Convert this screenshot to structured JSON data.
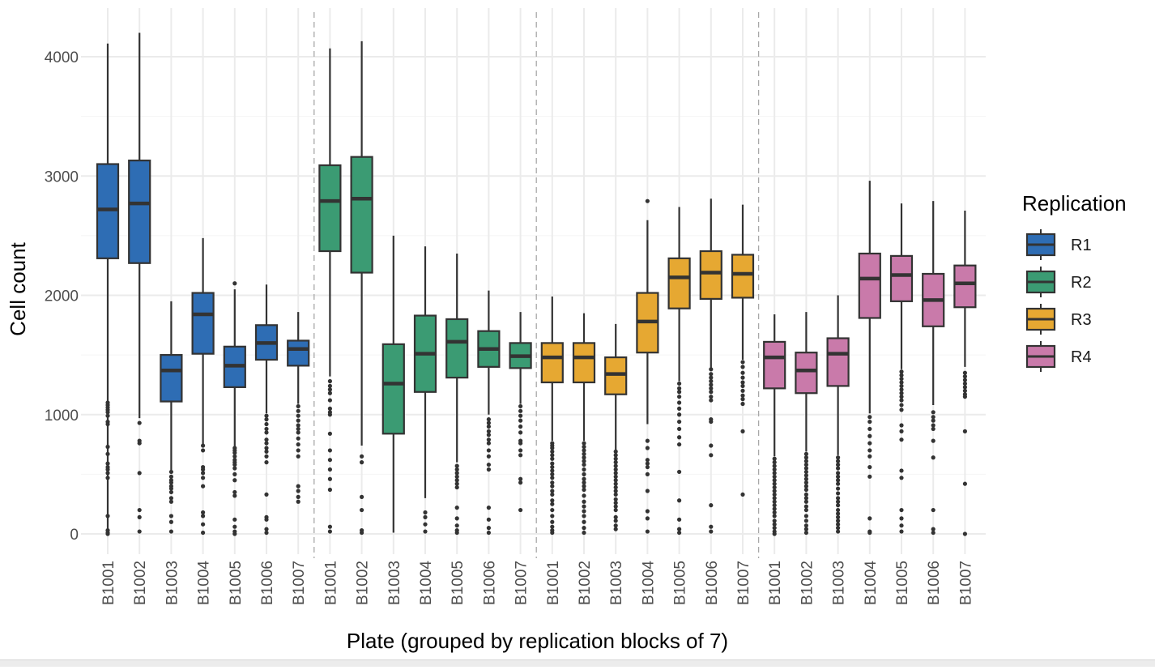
{
  "chart_data": {
    "type": "box",
    "xlabel": "Plate (grouped by replication blocks of 7)",
    "ylabel": "Cell count",
    "ylim": [
      -170,
      4400
    ],
    "yticks": [
      0,
      1000,
      2000,
      3000,
      4000
    ],
    "grid": true,
    "legend": {
      "title": "Replication",
      "position": "right"
    },
    "series": [
      {
        "name": "R1",
        "color": "#2E6DB4",
        "boxes": [
          {
            "plate": "B1001",
            "lower": 10,
            "q1": 2310,
            "median": 2720,
            "q3": 3100,
            "upper": 4110,
            "outliers": [
              1100,
              1080,
              1060,
              1040,
              1020,
              990,
              940,
              920,
              730,
              670,
              590,
              560,
              540,
              510,
              470,
              150,
              30,
              10,
              0
            ]
          },
          {
            "plate": "B1002",
            "lower": 970,
            "q1": 2270,
            "median": 2770,
            "q3": 3130,
            "upper": 4200,
            "outliers": [
              930,
              780,
              760,
              510,
              200,
              140,
              20
            ]
          },
          {
            "plate": "B1003",
            "lower": 520,
            "q1": 1110,
            "median": 1370,
            "q3": 1500,
            "upper": 1950,
            "outliers": [
              520,
              480,
              450,
              430,
              400,
              380,
              350,
              300,
              270,
              150,
              100,
              20
            ]
          },
          {
            "plate": "B1004",
            "lower": 750,
            "q1": 1510,
            "median": 1840,
            "q3": 2020,
            "upper": 2480,
            "outliers": [
              740,
              700,
              560,
              540,
              510,
              470,
              400,
              180,
              150,
              80,
              10
            ]
          },
          {
            "plate": "B1005",
            "lower": 720,
            "q1": 1230,
            "median": 1410,
            "q3": 1570,
            "upper": 2050,
            "outliers": [
              2100,
              720,
              700,
              680,
              650,
              620,
              600,
              580,
              550,
              500,
              450,
              350,
              320,
              120,
              60,
              20,
              0
            ]
          },
          {
            "plate": "B1006",
            "lower": 1010,
            "q1": 1460,
            "median": 1600,
            "q3": 1750,
            "upper": 2090,
            "outliers": [
              990,
              960,
              920,
              880,
              850,
              790,
              760,
              720,
              690,
              650,
              600,
              330,
              140,
              120,
              40,
              10
            ]
          },
          {
            "plate": "B1007",
            "lower": 1090,
            "q1": 1410,
            "median": 1550,
            "q3": 1620,
            "upper": 1860,
            "outliers": [
              1070,
              1030,
              990,
              950,
              910,
              880,
              850,
              800,
              750,
              700,
              650,
              400,
              360,
              310,
              270
            ]
          }
        ]
      },
      {
        "name": "R2",
        "color": "#3B9B73",
        "boxes": [
          {
            "plate": "B1001",
            "lower": 1320,
            "q1": 2370,
            "median": 2790,
            "q3": 3090,
            "upper": 4070,
            "outliers": [
              1280,
              1240,
              1210,
              1180,
              1120,
              1050,
              1020,
              1000,
              840,
              700,
              620,
              540,
              460,
              370,
              60,
              20
            ]
          },
          {
            "plate": "B1002",
            "lower": 740,
            "q1": 2190,
            "median": 2810,
            "q3": 3160,
            "upper": 4130,
            "outliers": [
              650,
              600,
              310,
              200,
              30,
              10
            ]
          },
          {
            "plate": "B1003",
            "lower": 10,
            "q1": 840,
            "median": 1260,
            "q3": 1590,
            "upper": 2500,
            "outliers": []
          },
          {
            "plate": "B1004",
            "lower": 300,
            "q1": 1190,
            "median": 1510,
            "q3": 1830,
            "upper": 2410,
            "outliers": [
              180,
              140,
              80,
              20
            ]
          },
          {
            "plate": "B1005",
            "lower": 600,
            "q1": 1310,
            "median": 1610,
            "q3": 1800,
            "upper": 2350,
            "outliers": [
              570,
              540,
              510,
              480,
              450,
              420,
              390,
              220,
              130,
              70,
              30,
              10
            ]
          },
          {
            "plate": "B1006",
            "lower": 1000,
            "q1": 1400,
            "median": 1550,
            "q3": 1700,
            "upper": 2040,
            "outliers": [
              960,
              930,
              900,
              860,
              830,
              790,
              760,
              700,
              650,
              580,
              540,
              220,
              120,
              50,
              10
            ]
          },
          {
            "plate": "B1007",
            "lower": 1090,
            "q1": 1390,
            "median": 1490,
            "q3": 1600,
            "upper": 1860,
            "outliers": [
              1070,
              1030,
              990,
              950,
              900,
              850,
              780,
              760,
              700,
              660,
              460,
              430,
              200
            ]
          }
        ]
      },
      {
        "name": "R3",
        "color": "#E6A832",
        "boxes": [
          {
            "plate": "B1001",
            "lower": 780,
            "q1": 1270,
            "median": 1480,
            "q3": 1600,
            "upper": 1990,
            "outliers": [
              760,
              740,
              720,
              690,
              660,
              630,
              590,
              560,
              530,
              500,
              470,
              430,
              400,
              360,
              330,
              280,
              250,
              200,
              150,
              100,
              60,
              30,
              10
            ]
          },
          {
            "plate": "B1002",
            "lower": 780,
            "q1": 1270,
            "median": 1480,
            "q3": 1600,
            "upper": 1850,
            "outliers": [
              760,
              730,
              700,
              670,
              640,
              610,
              580,
              540,
              500,
              460,
              430,
              400,
              370,
              320,
              270,
              230,
              190,
              150,
              100,
              50,
              10
            ]
          },
          {
            "plate": "B1003",
            "lower": 700,
            "q1": 1170,
            "median": 1340,
            "q3": 1480,
            "upper": 1760,
            "outliers": [
              690,
              660,
              630,
              600,
              570,
              540,
              510,
              480,
              450,
              420,
              390,
              360,
              330,
              290,
              260,
              230,
              200,
              140,
              110,
              70,
              40
            ]
          },
          {
            "plate": "B1004",
            "lower": 920,
            "q1": 1520,
            "median": 1780,
            "q3": 2020,
            "upper": 2630,
            "outliers": [
              2790,
              780,
              720,
              620,
              590,
              560,
              500,
              360,
              190,
              130,
              20
            ]
          },
          {
            "plate": "B1005",
            "lower": 1280,
            "q1": 1890,
            "median": 2150,
            "q3": 2310,
            "upper": 2740,
            "outliers": [
              1260,
              1220,
              1190,
              1150,
              1100,
              1050,
              1000,
              940,
              880,
              810,
              750,
              520,
              280,
              120,
              40,
              10
            ]
          },
          {
            "plate": "B1006",
            "lower": 1390,
            "q1": 1970,
            "median": 2190,
            "q3": 2370,
            "upper": 2810,
            "outliers": [
              1380,
              1340,
              1310,
              1280,
              1250,
              1220,
              1190,
              1150,
              1120,
              960,
              940,
              740,
              660,
              240,
              60,
              20
            ]
          },
          {
            "plate": "B1007",
            "lower": 1460,
            "q1": 1980,
            "median": 2180,
            "q3": 2340,
            "upper": 2760,
            "outliers": [
              1440,
              1400,
              1350,
              1310,
              1270,
              1240,
              1200,
              1160,
              1130,
              1090,
              860,
              330
            ]
          }
        ]
      },
      {
        "name": "R4",
        "color": "#C97AAA",
        "boxes": [
          {
            "plate": "B1001",
            "lower": 650,
            "q1": 1220,
            "median": 1480,
            "q3": 1610,
            "upper": 1840,
            "outliers": [
              630,
              600,
              570,
              540,
              510,
              480,
              450,
              420,
              390,
              360,
              330,
              300,
              270,
              240,
              210,
              180,
              150,
              110,
              80,
              50,
              20,
              0
            ]
          },
          {
            "plate": "B1002",
            "lower": 690,
            "q1": 1180,
            "median": 1370,
            "q3": 1520,
            "upper": 1860,
            "outliers": [
              670,
              640,
              610,
              580,
              550,
              520,
              490,
              460,
              430,
              400,
              370,
              330,
              300,
              270,
              230,
              200,
              150,
              110,
              70,
              40,
              10
            ]
          },
          {
            "plate": "B1003",
            "lower": 660,
            "q1": 1240,
            "median": 1510,
            "q3": 1640,
            "upper": 2000,
            "outliers": [
              640,
              610,
              580,
              550,
              510,
              480,
              450,
              420,
              380,
              340,
              300,
              270,
              240,
              200,
              170,
              140,
              110,
              80,
              50,
              20
            ]
          },
          {
            "plate": "B1004",
            "lower": 1010,
            "q1": 1810,
            "median": 2140,
            "q3": 2350,
            "upper": 2960,
            "outliers": [
              980,
              940,
              880,
              820,
              760,
              700,
              650,
              560,
              480,
              130,
              20,
              10
            ]
          },
          {
            "plate": "B1005",
            "lower": 1380,
            "q1": 1950,
            "median": 2170,
            "q3": 2330,
            "upper": 2770,
            "outliers": [
              1360,
              1330,
              1300,
              1270,
              1240,
              1210,
              1180,
              1150,
              1120,
              1080,
              1040,
              910,
              860,
              790,
              530,
              470,
              200,
              130,
              70,
              20
            ]
          },
          {
            "plate": "B1006",
            "lower": 1080,
            "q1": 1740,
            "median": 1960,
            "q3": 2180,
            "upper": 2790,
            "outliers": [
              1020,
              980,
              950,
              910,
              880,
              780,
              640,
              200,
              40,
              10
            ]
          },
          {
            "plate": "B1007",
            "lower": 1400,
            "q1": 1900,
            "median": 2100,
            "q3": 2250,
            "upper": 2710,
            "outliers": [
              1350,
              1320,
              1290,
              1260,
              1230,
              1200,
              1170,
              1150,
              860,
              420,
              0
            ]
          }
        ]
      }
    ]
  }
}
